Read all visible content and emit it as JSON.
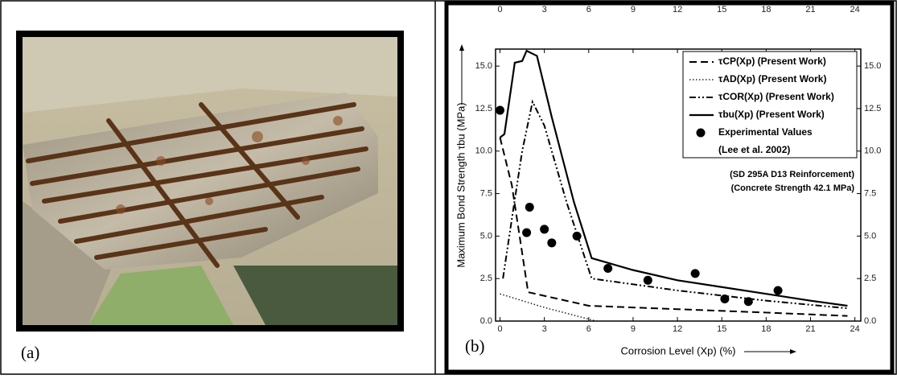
{
  "figure": {
    "labels": [
      "(a)",
      "(b)"
    ]
  },
  "chart_data": {
    "type": "line",
    "xlabel": "Corrosion Level (Xp) (%)",
    "ylabel": "Maximum Bond Strength τbu (MPa)",
    "annotations": [
      "(SD 295A D13 Reinforcement)",
      "(Concrete Strength 42.1 MPa)",
      "(Lee et al. 2002)"
    ],
    "xlim": [
      -0.3,
      24.4
    ],
    "ylim": [
      0,
      16
    ],
    "xticks": [
      0,
      3,
      6,
      9,
      12,
      15,
      18,
      21,
      24
    ],
    "yticks": [
      {
        "value": 0,
        "label": "0.0"
      },
      {
        "value": 2.5,
        "label": "2.5"
      },
      {
        "value": 5,
        "label": "5.0"
      },
      {
        "value": 7.5,
        "label": "7.5"
      },
      {
        "value": 10,
        "label": "10.0"
      },
      {
        "value": 12.5,
        "label": "12.5"
      },
      {
        "value": 15,
        "label": "15.0"
      }
    ],
    "top_axis": true,
    "right_axis": true,
    "legend": "upper right",
    "series": [
      {
        "name": "τCP(Xp) (Present Work)",
        "color": "#000000",
        "style": "dashed",
        "x": [
          0,
          0.8,
          1.5,
          1.9,
          6,
          12,
          18,
          23.5
        ],
        "values": [
          10.8,
          8,
          4,
          1.7,
          0.9,
          0.7,
          0.5,
          0.3
        ]
      },
      {
        "name": "τAD(Xp) (Present Work)",
        "color": "#000000",
        "style": "dotted",
        "x": [
          0,
          3,
          6.5
        ],
        "values": [
          1.6,
          0.8,
          0
        ]
      },
      {
        "name": "τCOR(Xp) (Present Work)",
        "color": "#000000",
        "style": "dashdot",
        "x": [
          0.2,
          0.8,
          1.5,
          2.2,
          3,
          4.5,
          6.2,
          12,
          18,
          23.5
        ],
        "values": [
          2.5,
          6,
          10,
          12.9,
          11.5,
          7,
          2.5,
          1.8,
          1.2,
          0.75
        ]
      },
      {
        "name": "τbu(Xp) (Present Work)",
        "color": "#000000",
        "style": "solid",
        "x": [
          0,
          0.3,
          1,
          1.5,
          1.8,
          2.5,
          3.5,
          5,
          6.2,
          9,
          12,
          15,
          18,
          21,
          23.5
        ],
        "values": [
          10.8,
          11,
          15.2,
          15.3,
          15.9,
          15.6,
          12,
          7,
          3.7,
          3,
          2.4,
          2,
          1.6,
          1.2,
          0.9
        ]
      },
      {
        "name": "Experimental Values",
        "color": "#000000",
        "style": "markers",
        "x": [
          0,
          1.8,
          2,
          3,
          3.5,
          5.2,
          7.3,
          10,
          13.2,
          15.2,
          16.8,
          18.8
        ],
        "values": [
          12.4,
          5.2,
          6.7,
          5.4,
          4.6,
          5,
          3.1,
          2.4,
          2.8,
          1.3,
          1.15,
          1.8
        ]
      }
    ]
  }
}
